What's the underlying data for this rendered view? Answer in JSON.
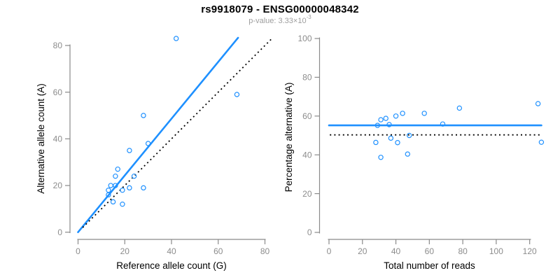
{
  "header": {
    "title": "rs9918079 - ENSG00000048342",
    "pvalue_label": "p-value: 3.33×10",
    "pvalue_exponent": "-3"
  },
  "colors": {
    "accent_blue": "#1E90FF",
    "axis_gray": "#8a8a8a",
    "tick_label_gray": "#8c8c8c",
    "axis_title_black": "#000000",
    "dotted_black": "#000000",
    "background": "#ffffff"
  },
  "chart_data": [
    {
      "type": "scatter",
      "panel": "allele-counts",
      "xlabel": "Reference allele count (G)",
      "ylabel": "Alternative allele count (A)",
      "xlim": [
        0,
        80
      ],
      "ylim": [
        0,
        80
      ],
      "xticks": [
        0,
        20,
        40,
        60,
        80
      ],
      "yticks": [
        0,
        20,
        40,
        60,
        80
      ],
      "grid": false,
      "legend": null,
      "point_color": "#1E90FF",
      "points": [
        [
          42,
          83
        ],
        [
          68,
          59
        ],
        [
          28,
          50
        ],
        [
          30,
          38
        ],
        [
          22,
          35
        ],
        [
          17,
          27
        ],
        [
          16,
          24
        ],
        [
          24,
          24
        ],
        [
          14,
          20
        ],
        [
          16,
          20
        ],
        [
          13,
          18
        ],
        [
          19,
          18
        ],
        [
          22,
          19
        ],
        [
          28,
          19
        ],
        [
          13,
          16
        ],
        [
          15,
          13
        ],
        [
          19,
          12
        ]
      ],
      "lines": [
        {
          "name": "regression-fit-line",
          "style": "solid",
          "color": "#1E90FF",
          "from": [
            0,
            0
          ],
          "to": [
            68.5,
            83.3
          ]
        },
        {
          "name": "identity-line",
          "style": "dotted",
          "color": "#000000",
          "from": [
            2,
            2
          ],
          "to": [
            82.6,
            82.6
          ]
        }
      ]
    },
    {
      "type": "scatter",
      "panel": "percentage-vs-coverage",
      "xlabel": "Total number of reads",
      "ylabel": "Percentage alternative (A)",
      "xlim": [
        0,
        128
      ],
      "ylim": [
        0,
        100
      ],
      "xticks": [
        0,
        20,
        40,
        60,
        80,
        100,
        120
      ],
      "yticks": [
        0,
        20,
        40,
        60,
        80,
        100
      ],
      "grid": false,
      "legend": null,
      "point_color": "#1E90FF",
      "points": [
        [
          125,
          66.4
        ],
        [
          127,
          46.5
        ],
        [
          78,
          64.1
        ],
        [
          68,
          55.9
        ],
        [
          57,
          61.4
        ],
        [
          44,
          61.4
        ],
        [
          40,
          60.0
        ],
        [
          48,
          50.0
        ],
        [
          34,
          58.8
        ],
        [
          36,
          55.6
        ],
        [
          31,
          58.1
        ],
        [
          37,
          48.6
        ],
        [
          41,
          46.3
        ],
        [
          47,
          40.4
        ],
        [
          29,
          55.2
        ],
        [
          28,
          46.4
        ],
        [
          31,
          38.7
        ]
      ],
      "lines": [
        {
          "name": "mean-percentage-line",
          "style": "solid",
          "color": "#1E90FF",
          "from": [
            0,
            55.2
          ],
          "to": [
            127,
            55.2
          ]
        },
        {
          "name": "fifty-percent-line",
          "style": "dotted",
          "color": "#000000",
          "from": [
            0.5,
            50.3
          ],
          "to": [
            126,
            50.3
          ]
        }
      ]
    }
  ]
}
